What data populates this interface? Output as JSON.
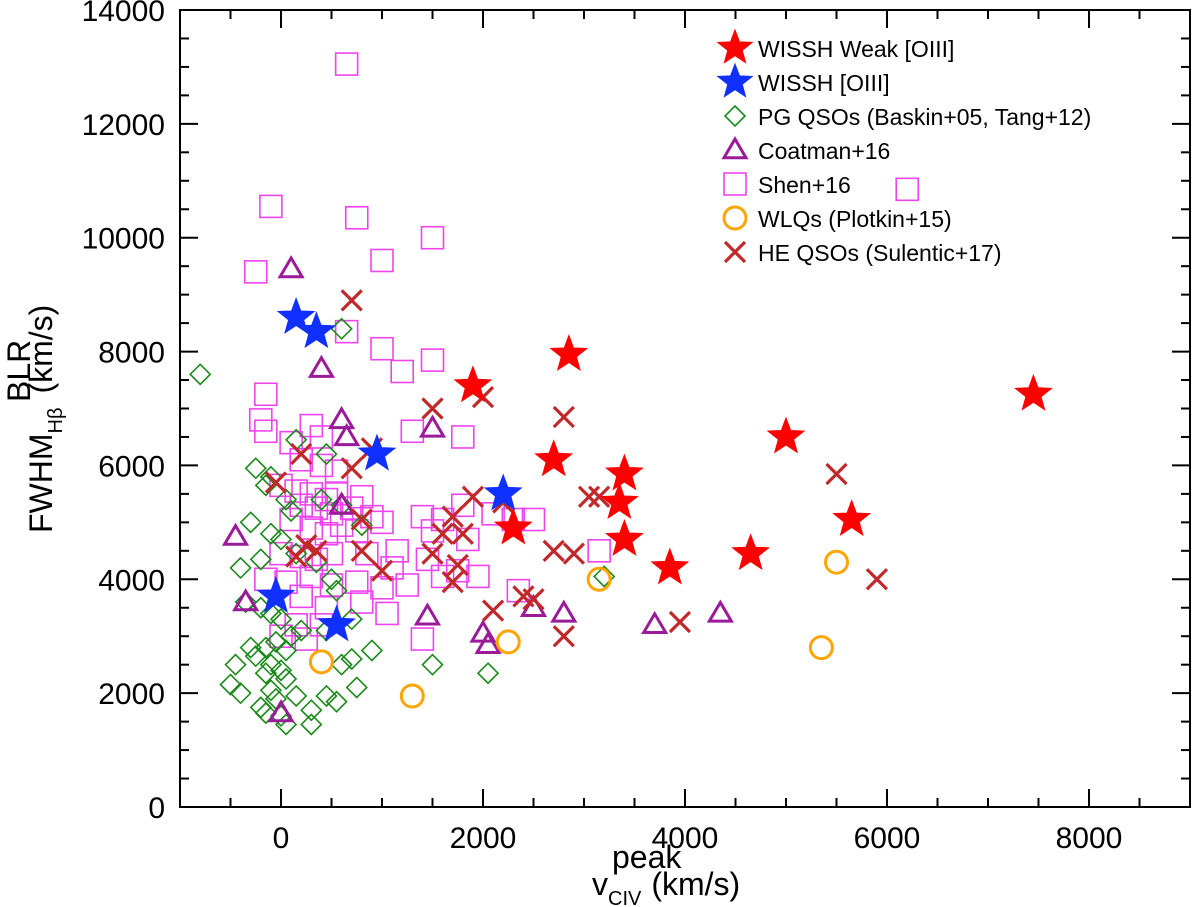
{
  "chart_data": {
    "type": "scatter",
    "xlabel": "v",
    "xlabel_sup": "peak",
    "xlabel_sub": "CIV",
    "xlabel_unit": "(km/s)",
    "ylabel": "FWHM",
    "ylabel_sup": "BLR",
    "ylabel_sub": "Hβ",
    "ylabel_unit": "(km/s)",
    "xlim": [
      -1000,
      9000
    ],
    "ylim": [
      0,
      14000
    ],
    "x_ticks": [
      0,
      2000,
      4000,
      6000,
      8000
    ],
    "x_tick_labels": [
      "0",
      "2000",
      "4000",
      "6000",
      "8000"
    ],
    "y_ticks": [
      0,
      2000,
      4000,
      6000,
      8000,
      10000,
      12000,
      14000
    ],
    "y_tick_labels": [
      "0",
      "2000",
      "4000",
      "6000",
      "8000",
      "10000",
      "12000",
      "14000"
    ],
    "legend_position": "top-right",
    "series": [
      {
        "name": "WISSH Weak [OIII]",
        "marker": "star-filled",
        "color": "#ff0000",
        "points": [
          [
            1900,
            7400
          ],
          [
            2850,
            7950
          ],
          [
            2700,
            6100
          ],
          [
            3400,
            5850
          ],
          [
            3350,
            5350
          ],
          [
            3400,
            4700
          ],
          [
            2300,
            4900
          ],
          [
            3850,
            4200
          ],
          [
            4650,
            4450
          ],
          [
            5000,
            6500
          ],
          [
            5650,
            5050
          ],
          [
            7450,
            7250
          ]
        ]
      },
      {
        "name": "WISSH [OIII]",
        "marker": "star-filled",
        "color": "#1030ff",
        "points": [
          [
            150,
            8600
          ],
          [
            350,
            8350
          ],
          [
            950,
            6200
          ],
          [
            2200,
            5500
          ],
          [
            -50,
            3700
          ],
          [
            550,
            3200
          ]
        ]
      },
      {
        "name": "PG QSOs (Baskin+05, Tang+12)",
        "marker": "diamond-open",
        "color": "#1a8a1a",
        "points": [
          [
            -800,
            7600
          ],
          [
            600,
            8400
          ],
          [
            150,
            6450
          ],
          [
            450,
            6200
          ],
          [
            -250,
            5950
          ],
          [
            -100,
            5800
          ],
          [
            -150,
            5650
          ],
          [
            50,
            5400
          ],
          [
            100,
            5200
          ],
          [
            -300,
            5000
          ],
          [
            -100,
            4800
          ],
          [
            0,
            4700
          ],
          [
            -200,
            4350
          ],
          [
            -400,
            4200
          ],
          [
            150,
            4450
          ],
          [
            350,
            4300
          ],
          [
            500,
            4000
          ],
          [
            550,
            3800
          ],
          [
            -350,
            3600
          ],
          [
            -200,
            3500
          ],
          [
            -100,
            3400
          ],
          [
            0,
            3300
          ],
          [
            100,
            3000
          ],
          [
            200,
            3100
          ],
          [
            -50,
            2900
          ],
          [
            -150,
            2800
          ],
          [
            -300,
            2800
          ],
          [
            50,
            2750
          ],
          [
            -250,
            2650
          ],
          [
            -450,
            2500
          ],
          [
            -100,
            2500
          ],
          [
            0,
            2400
          ],
          [
            -150,
            2350
          ],
          [
            50,
            2250
          ],
          [
            -500,
            2150
          ],
          [
            -400,
            2000
          ],
          [
            -100,
            2050
          ],
          [
            -50,
            1900
          ],
          [
            150,
            1950
          ],
          [
            450,
            1950
          ],
          [
            550,
            1850
          ],
          [
            300,
            1700
          ],
          [
            -150,
            1650
          ],
          [
            0,
            1600
          ],
          [
            50,
            1450
          ],
          [
            300,
            1450
          ],
          [
            750,
            2100
          ],
          [
            600,
            2500
          ],
          [
            700,
            2600
          ],
          [
            900,
            2750
          ],
          [
            1500,
            2500
          ],
          [
            2050,
            2350
          ],
          [
            3200,
            4050
          ],
          [
            700,
            3300
          ],
          [
            450,
            3100
          ],
          [
            800,
            4950
          ],
          [
            400,
            5400
          ],
          [
            600,
            5300
          ],
          [
            -200,
            1750
          ]
        ]
      },
      {
        "name": "Coatman+16",
        "marker": "triangle-open",
        "color": "#9a1a9a",
        "points": [
          [
            100,
            9450
          ],
          [
            400,
            7700
          ],
          [
            600,
            6800
          ],
          [
            650,
            6500
          ],
          [
            600,
            5300
          ],
          [
            1500,
            6650
          ],
          [
            -450,
            4750
          ],
          [
            -350,
            3600
          ],
          [
            1450,
            3350
          ],
          [
            2000,
            3050
          ],
          [
            2050,
            2850
          ],
          [
            2500,
            3500
          ],
          [
            2800,
            3400
          ],
          [
            3700,
            3200
          ],
          [
            4350,
            3400
          ],
          [
            0,
            1650
          ]
        ]
      },
      {
        "name": "Shen+16",
        "marker": "square-open",
        "color": "#ee44ee",
        "points": [
          [
            650,
            13050
          ],
          [
            -100,
            10550
          ],
          [
            750,
            10350
          ],
          [
            1500,
            10000
          ],
          [
            -250,
            9400
          ],
          [
            1000,
            9600
          ],
          [
            650,
            8350
          ],
          [
            1000,
            8050
          ],
          [
            1500,
            7850
          ],
          [
            1200,
            7650
          ],
          [
            -150,
            7250
          ],
          [
            -200,
            6800
          ],
          [
            -150,
            6600
          ],
          [
            300,
            6700
          ],
          [
            400,
            6500
          ],
          [
            100,
            6400
          ],
          [
            1300,
            6600
          ],
          [
            1800,
            6500
          ],
          [
            200,
            6100
          ],
          [
            400,
            6000
          ],
          [
            550,
            5900
          ],
          [
            0,
            5650
          ],
          [
            150,
            5550
          ],
          [
            300,
            5500
          ],
          [
            450,
            5400
          ],
          [
            550,
            5500
          ],
          [
            800,
            5450
          ],
          [
            200,
            5300
          ],
          [
            350,
            5250
          ],
          [
            500,
            5150
          ],
          [
            700,
            5250
          ],
          [
            900,
            5100
          ],
          [
            100,
            5050
          ],
          [
            300,
            4900
          ],
          [
            450,
            4800
          ],
          [
            600,
            4950
          ],
          [
            750,
            4850
          ],
          [
            1000,
            5000
          ],
          [
            1400,
            5100
          ],
          [
            1600,
            5050
          ],
          [
            1800,
            5300
          ],
          [
            2100,
            5150
          ],
          [
            2300,
            5050
          ],
          [
            2500,
            5050
          ],
          [
            1500,
            4850
          ],
          [
            1850,
            4700
          ],
          [
            0,
            4450
          ],
          [
            200,
            4400
          ],
          [
            350,
            4350
          ],
          [
            500,
            4450
          ],
          [
            850,
            4450
          ],
          [
            1150,
            4500
          ],
          [
            1450,
            4350
          ],
          [
            1750,
            4150
          ],
          [
            -150,
            4000
          ],
          [
            50,
            3950
          ],
          [
            300,
            4050
          ],
          [
            500,
            3900
          ],
          [
            750,
            3950
          ],
          [
            1000,
            3850
          ],
          [
            1250,
            3900
          ],
          [
            1600,
            4050
          ],
          [
            1950,
            4050
          ],
          [
            2350,
            3800
          ],
          [
            200,
            3700
          ],
          [
            450,
            3500
          ],
          [
            800,
            3600
          ],
          [
            1050,
            3400
          ],
          [
            150,
            3200
          ],
          [
            400,
            3200
          ],
          [
            0,
            3000
          ],
          [
            250,
            2950
          ],
          [
            1400,
            2950
          ],
          [
            3150,
            4500
          ],
          [
            6200,
            10850
          ],
          [
            1100,
            4200
          ]
        ]
      },
      {
        "name": "WLQs (Plotkin+15)",
        "marker": "circle-open",
        "color": "#ffa500",
        "points": [
          [
            3150,
            4000
          ],
          [
            5500,
            4300
          ],
          [
            5350,
            2800
          ],
          [
            2250,
            2900
          ],
          [
            1300,
            1950
          ],
          [
            400,
            2550
          ]
        ]
      },
      {
        "name": "HE QSOs (Sulentic+17)",
        "marker": "x",
        "color": "#c0282a",
        "points": [
          [
            700,
            8900
          ],
          [
            1500,
            7000
          ],
          [
            2000,
            7200
          ],
          [
            2800,
            6850
          ],
          [
            900,
            6300
          ],
          [
            700,
            5950
          ],
          [
            200,
            6200
          ],
          [
            -50,
            5700
          ],
          [
            3050,
            5450
          ],
          [
            3150,
            5450
          ],
          [
            5500,
            5850
          ],
          [
            1900,
            5450
          ],
          [
            2200,
            5350
          ],
          [
            1700,
            5100
          ],
          [
            800,
            5050
          ],
          [
            1600,
            4800
          ],
          [
            1800,
            4800
          ],
          [
            2700,
            4500
          ],
          [
            2900,
            4450
          ],
          [
            1500,
            4450
          ],
          [
            1750,
            4250
          ],
          [
            1000,
            4150
          ],
          [
            800,
            4500
          ],
          [
            1700,
            3950
          ],
          [
            250,
            4600
          ],
          [
            150,
            4400
          ],
          [
            350,
            4500
          ],
          [
            2100,
            3450
          ],
          [
            2400,
            3700
          ],
          [
            2500,
            3650
          ],
          [
            2800,
            3000
          ],
          [
            3950,
            3250
          ],
          [
            5900,
            4000
          ]
        ]
      }
    ]
  }
}
